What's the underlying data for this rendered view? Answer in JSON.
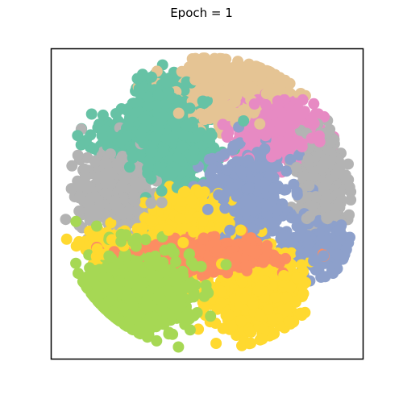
{
  "chart_data": {
    "type": "scatter",
    "title": "Epoch = 1",
    "xlabel": "",
    "ylabel": "",
    "xlim": [
      0,
      1
    ],
    "ylim": [
      0,
      1
    ],
    "axes_ticks": false,
    "grid": false,
    "legend": "none",
    "colors": {
      "teal": "#66c2a5",
      "orange": "#fc8d62",
      "blue": "#8da0cb",
      "pink": "#e78ac3",
      "green": "#a6d854",
      "yellow": "#ffd92f",
      "tan": "#e5c494",
      "gray": "#b3b3b3"
    },
    "clusters": [
      {
        "color": "teal",
        "cx": 0.38,
        "cy": 0.7,
        "sx": 0.075,
        "sy": 0.085,
        "n": 650,
        "extra": [
          [
            0.22,
            0.72,
            0.05,
            0.025,
            120
          ],
          [
            0.36,
            0.86,
            0.04,
            0.03,
            120
          ]
        ]
      },
      {
        "color": "tan",
        "cx": 0.58,
        "cy": 0.87,
        "sx": 0.08,
        "sy": 0.045,
        "n": 550,
        "extra": []
      },
      {
        "color": "pink",
        "cx": 0.72,
        "cy": 0.73,
        "sx": 0.065,
        "sy": 0.05,
        "n": 480,
        "extra": []
      },
      {
        "color": "gray",
        "cx": 0.2,
        "cy": 0.53,
        "sx": 0.055,
        "sy": 0.06,
        "n": 480,
        "extra": [
          [
            0.87,
            0.56,
            0.035,
            0.08,
            420
          ]
        ]
      },
      {
        "color": "blue",
        "cx": 0.63,
        "cy": 0.5,
        "sx": 0.07,
        "sy": 0.075,
        "n": 520,
        "extra": [
          [
            0.85,
            0.35,
            0.05,
            0.035,
            260
          ]
        ]
      },
      {
        "color": "yellow",
        "cx": 0.43,
        "cy": 0.45,
        "sx": 0.06,
        "sy": 0.045,
        "n": 380,
        "extra": [
          [
            0.65,
            0.22,
            0.075,
            0.07,
            560
          ],
          [
            0.2,
            0.36,
            0.05,
            0.03,
            120
          ]
        ]
      },
      {
        "color": "orange",
        "cx": 0.48,
        "cy": 0.33,
        "sx": 0.11,
        "sy": 0.025,
        "n": 520,
        "extra": []
      },
      {
        "color": "green",
        "cx": 0.28,
        "cy": 0.22,
        "sx": 0.085,
        "sy": 0.07,
        "n": 560,
        "extra": []
      }
    ]
  }
}
